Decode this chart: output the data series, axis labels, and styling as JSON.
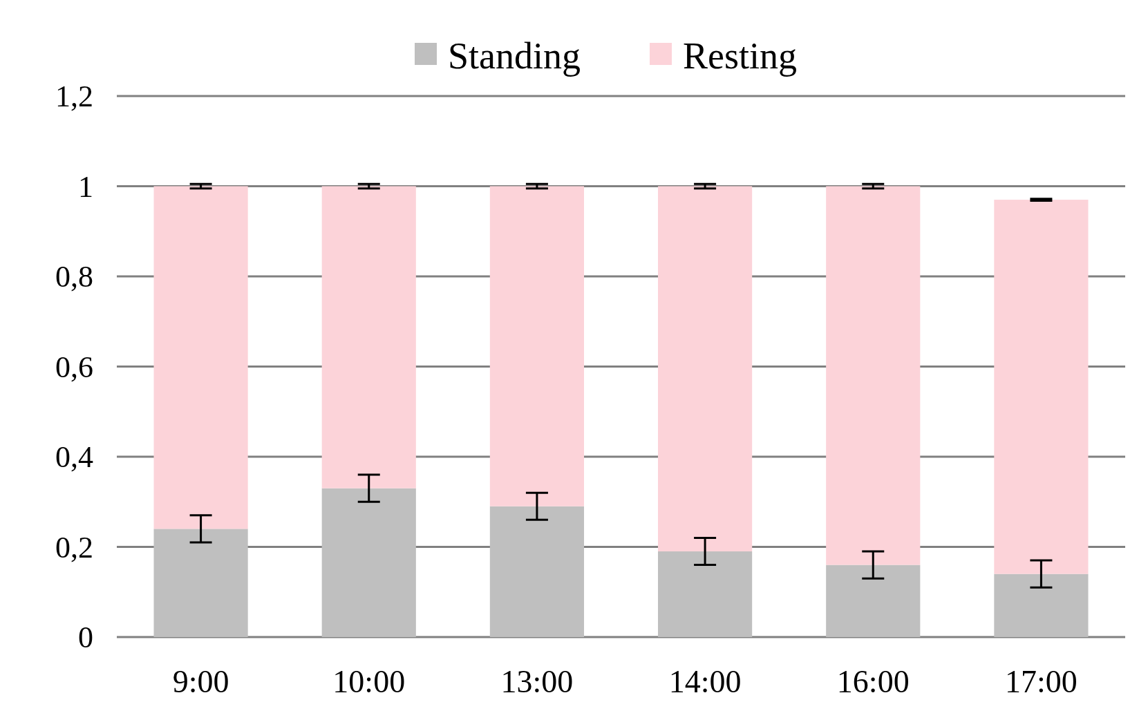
{
  "chart_data": {
    "type": "bar",
    "stacked": true,
    "categories": [
      "9:00",
      "10:00",
      "13:00",
      "14:00",
      "16:00",
      "17:00"
    ],
    "series": [
      {
        "name": "Standing",
        "color": "#bfbfbf",
        "values": [
          0.24,
          0.33,
          0.29,
          0.19,
          0.16,
          0.14
        ],
        "errors": [
          0.03,
          0.03,
          0.03,
          0.03,
          0.03,
          0.03
        ]
      },
      {
        "name": "Resting",
        "color": "#fcd3d9",
        "values": [
          0.76,
          0.67,
          0.71,
          0.81,
          0.84,
          0.83
        ],
        "errors": [
          0.005,
          0.005,
          0.005,
          0.005,
          0.005,
          0.002
        ]
      }
    ],
    "ylim": [
      0,
      1.2
    ],
    "yticks": [
      0,
      {
        "value": 0.2,
        "label": "0,2"
      },
      {
        "value": 0.4,
        "label": "0,4"
      },
      {
        "value": 0.6,
        "label": "0,6"
      },
      {
        "value": 0.8,
        "label": "0,8"
      },
      1,
      {
        "value": 1.2,
        "label": "1,2"
      }
    ],
    "grid": "y",
    "legend": "top"
  }
}
